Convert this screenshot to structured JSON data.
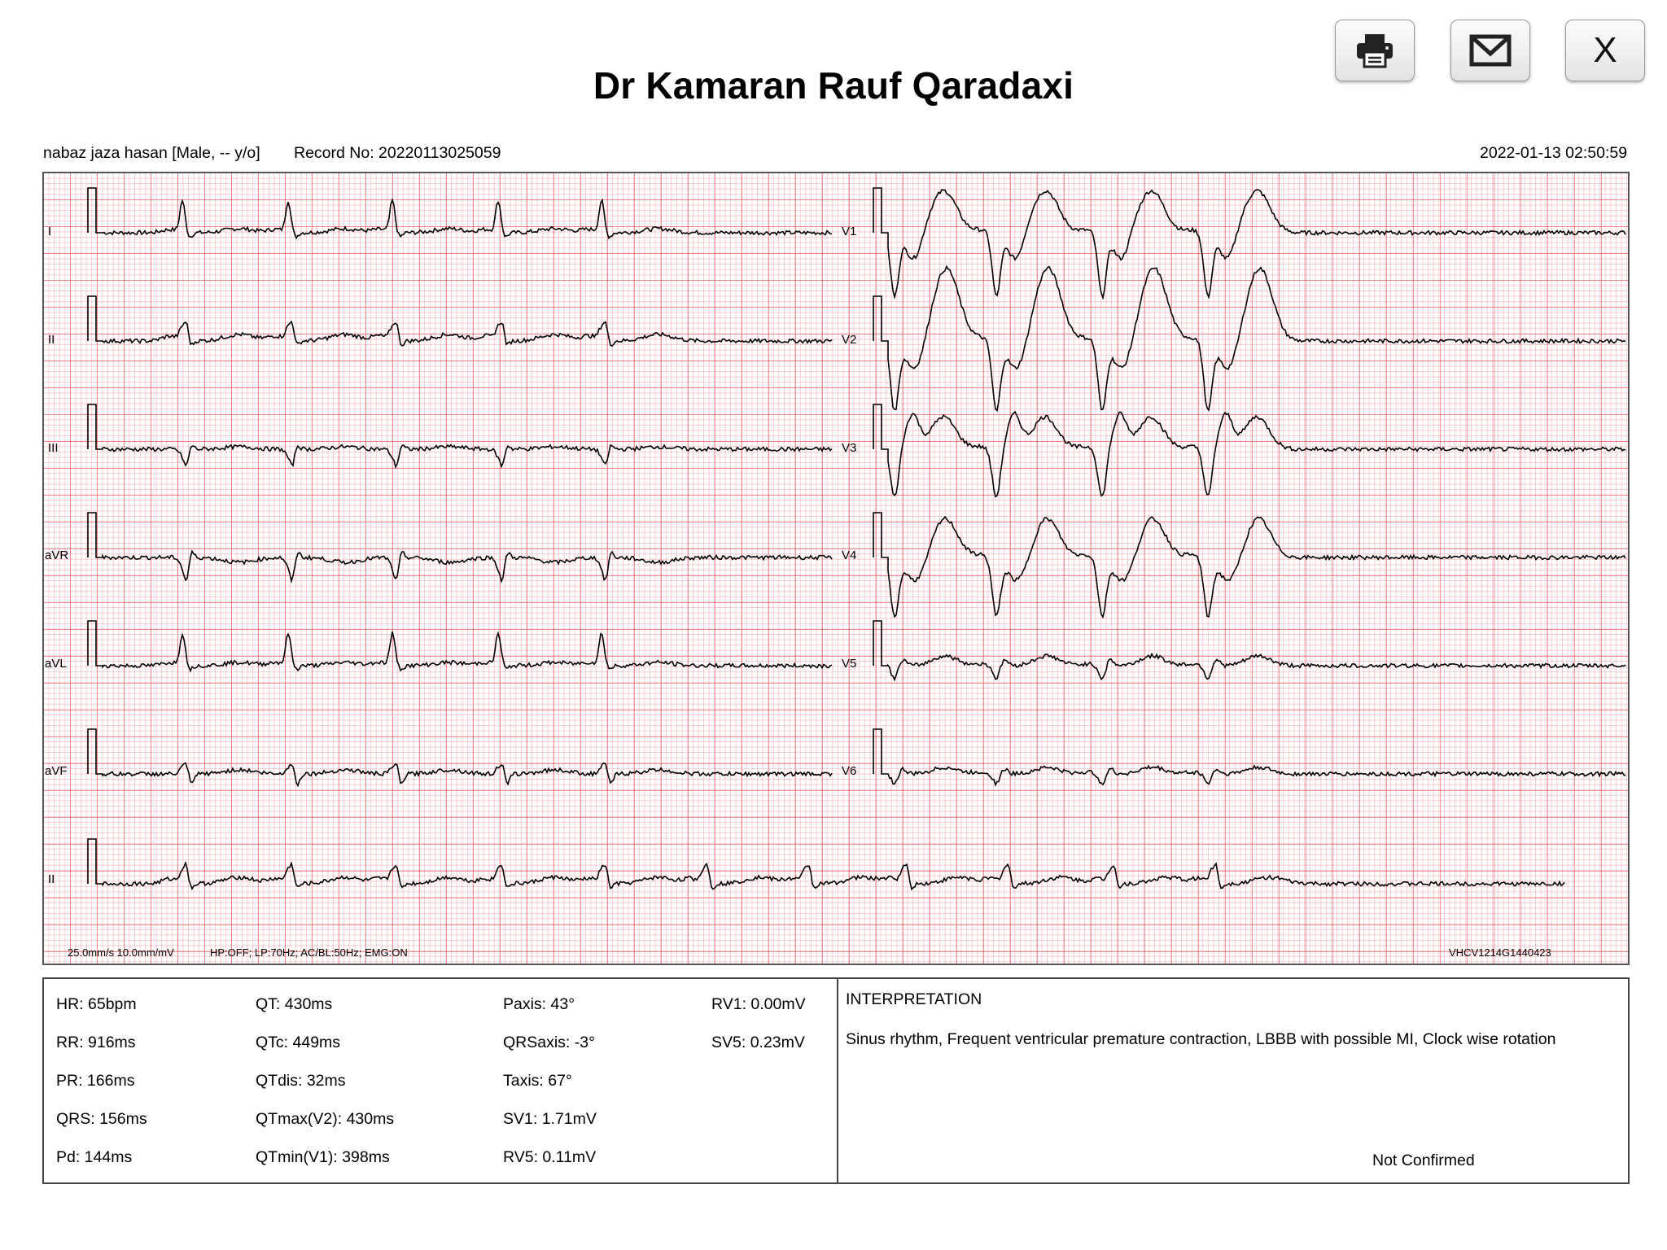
{
  "title": "Dr Kamaran Rauf Qaradaxi",
  "toolbar": {
    "print_icon": "printer-icon",
    "email_icon": "envelope-icon",
    "close_label": "X"
  },
  "header": {
    "patient": "nabaz jaza hasan [Male, -- y/o]",
    "record": "Record No: 20220113025059",
    "datetime": "2022-01-13 02:50:59"
  },
  "ecg": {
    "leads": [
      "I",
      "II",
      "III",
      "aVR",
      "aVL",
      "aVF",
      "V1",
      "V2",
      "V3",
      "V4",
      "V5",
      "V6",
      "II"
    ],
    "settings": "25.0mm/s  10.0mm/mV",
    "filters": "HP:OFF; LP:70Hz; AC/BL:50Hz; EMG:ON",
    "device": "VHCV1214G1440423",
    "grid_color": "#e84650",
    "trace_color": "#000000"
  },
  "measurements": {
    "col1": [
      "HR: 65bpm",
      "RR: 916ms",
      "PR: 166ms",
      "QRS: 156ms",
      "Pd: 144ms"
    ],
    "col2": [
      "QT: 430ms",
      "QTc: 449ms",
      "QTdis: 32ms",
      "QTmax(V2): 430ms",
      "QTmin(V1): 398ms"
    ],
    "col3": [
      "Paxis: 43°",
      "QRSaxis: -3°",
      "Taxis: 67°",
      "SV1: 1.71mV",
      "RV5: 0.11mV"
    ],
    "col4": [
      "RV1: 0.00mV",
      "SV5: 0.23mV"
    ]
  },
  "interpretation": {
    "heading": "INTERPRETATION",
    "text": "Sinus rhythm, Frequent ventricular premature contraction, LBBB with possible MI, Clock wise rotation",
    "status": "Not Confirmed"
  }
}
